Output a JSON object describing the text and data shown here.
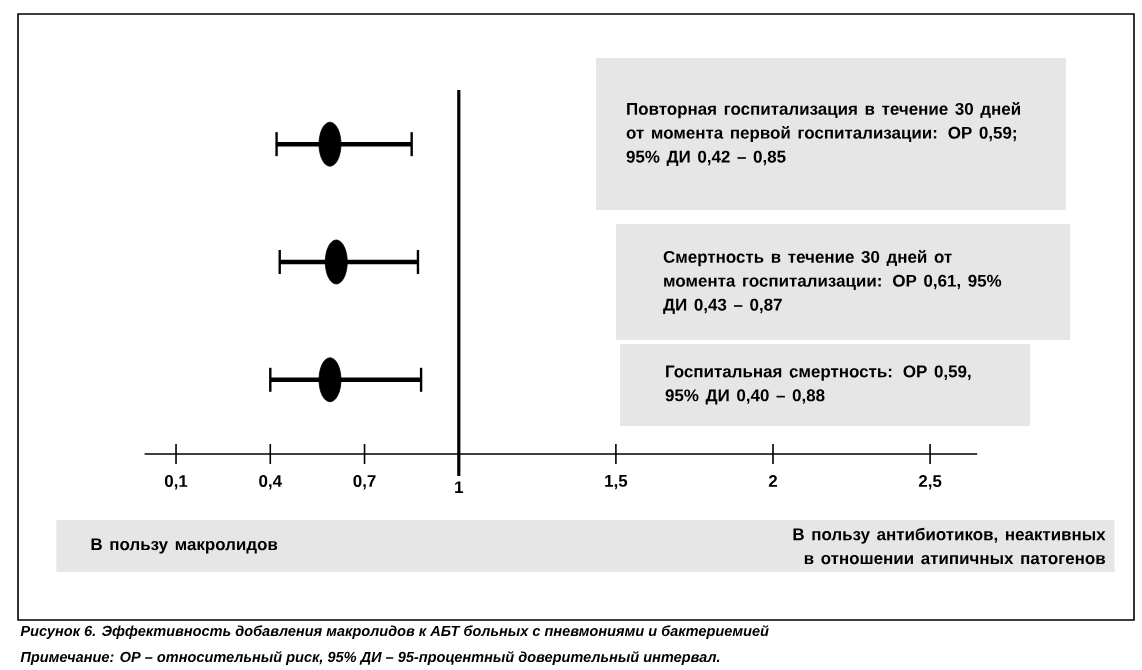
{
  "chart_data": {
    "type": "scatter",
    "orientation": "horizontal",
    "categories": [
      null,
      null,
      null
    ],
    "values": [
      0.59,
      0.61,
      0.59
    ],
    "errors": [
      [
        0.42,
        0.85
      ],
      [
        0.43,
        0.87
      ],
      [
        0.4,
        0.88
      ]
    ],
    "color": "#000000",
    "marker": "circle",
    "xlim": [
      0,
      2.65
    ],
    "xticks": [
      {
        "value": 0.1,
        "label": "0,1"
      },
      {
        "value": 0.4,
        "label": "0,4"
      },
      {
        "value": 0.7,
        "label": "0,7"
      },
      1,
      {
        "value": 1.5,
        "label": "1,5"
      },
      2,
      {
        "value": 2.5,
        "label": "2,5"
      }
    ],
    "ref_lines": [
      {
        "axis": "x",
        "value": 1,
        "color": "#000000"
      }
    ],
    "annotations": [
      "Повторная госпитализация в течение 30 дней от момента первой госпитализации: ОР 0,59; 95% ДИ 0,42 – 0,85",
      "Смертность в течение 30 дней от момента госпитализации: ОР 0,61, 95% ДИ 0,43 – 0,87",
      "Госпитальная смертность: ОР 0,59, 95% ДИ 0,40 – 0,88",
      "В пользу макролидов",
      "В пользу антибиотиков, неактивных в отношении атипичных патогенов",
      "Рисунок 6. Эффективность добавления макролидов к АБТ больных с пневмониями и бактериемией",
      "Примечание: ОР – относительный риск, 95% ДИ – 95-процентный доверительный интервал."
    ]
  }
}
